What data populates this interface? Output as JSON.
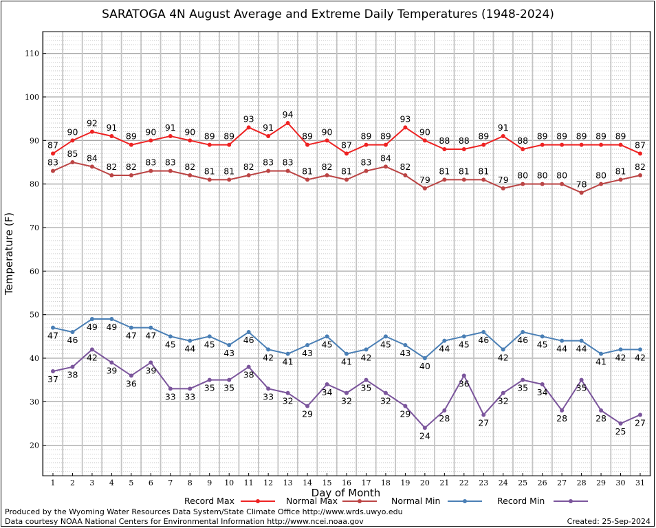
{
  "chart_data": {
    "type": "line",
    "title": "SARATOGA 4N August Average and Extreme Daily Temperatures (1948-2024)",
    "xlabel": "Day of Month",
    "ylabel": "Temperature (F)",
    "ylim": [
      13,
      115
    ],
    "yticks": [
      20,
      30,
      40,
      50,
      60,
      70,
      80,
      90,
      100,
      110
    ],
    "x": [
      1,
      2,
      3,
      4,
      5,
      6,
      7,
      8,
      9,
      10,
      11,
      12,
      13,
      14,
      15,
      16,
      17,
      18,
      19,
      20,
      21,
      22,
      23,
      24,
      25,
      26,
      27,
      28,
      29,
      30,
      31
    ],
    "grid": true,
    "legend_position": "bottom",
    "series": [
      {
        "name": "Record Max",
        "color": "#ee2222",
        "label_pos": "above",
        "values": [
          87,
          90,
          92,
          91,
          89,
          90,
          91,
          90,
          89,
          89,
          93,
          91,
          94,
          89,
          90,
          87,
          89,
          89,
          93,
          90,
          88,
          88,
          89,
          91,
          88,
          89,
          89,
          89,
          89,
          89,
          87
        ]
      },
      {
        "name": "Normal Max",
        "color": "#bb4444",
        "label_pos": "above",
        "values": [
          83,
          85,
          84,
          82,
          82,
          83,
          83,
          82,
          81,
          81,
          82,
          83,
          83,
          81,
          82,
          81,
          83,
          84,
          82,
          79,
          81,
          81,
          81,
          79,
          80,
          80,
          80,
          78,
          80,
          81,
          82
        ]
      },
      {
        "name": "Normal Min",
        "color": "#4a7fb5",
        "label_pos": "below",
        "values": [
          47,
          46,
          49,
          49,
          47,
          47,
          45,
          44,
          45,
          43,
          46,
          42,
          41,
          43,
          45,
          41,
          42,
          45,
          43,
          40,
          44,
          45,
          46,
          42,
          46,
          45,
          44,
          44,
          41,
          42,
          42
        ]
      },
      {
        "name": "Record Min",
        "color": "#7b559c",
        "label_pos": "below",
        "values": [
          37,
          38,
          42,
          39,
          36,
          39,
          33,
          33,
          35,
          35,
          38,
          33,
          32,
          29,
          34,
          32,
          35,
          32,
          29,
          24,
          28,
          36,
          27,
          32,
          35,
          34,
          28,
          35,
          28,
          25,
          27
        ]
      }
    ]
  },
  "footer": {
    "produced_by": "Produced by the Wyoming Water Resources Data System/State Climate Office http://www.wrds.uwyo.edu",
    "data_courtesy": "Data courtesy NOAA National Centers for Environmental Information http://www.ncei.noaa.gov",
    "created": "Created:  25-Sep-2024"
  }
}
